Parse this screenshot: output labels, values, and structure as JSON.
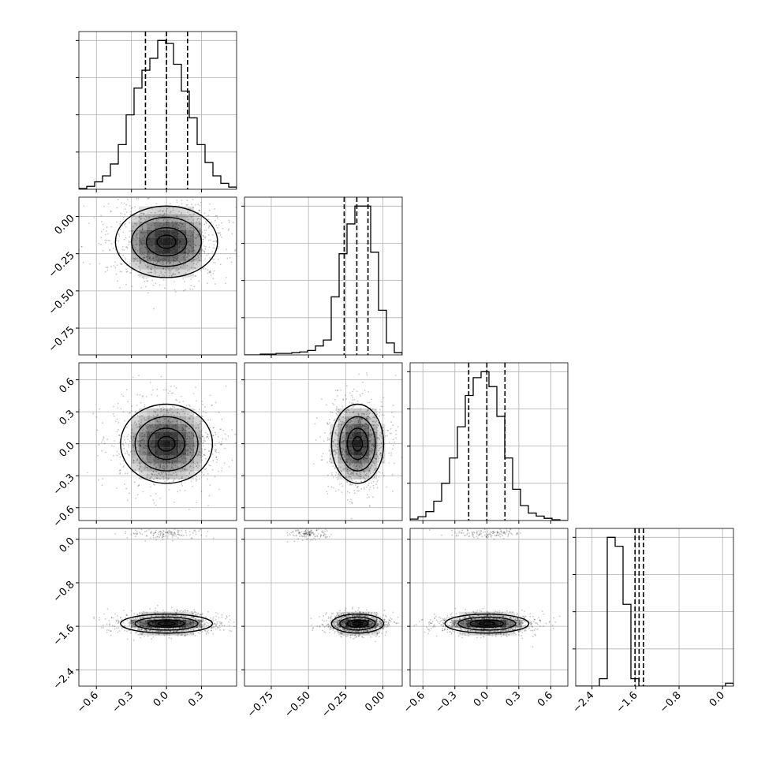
{
  "chart_data": {
    "type": "corner",
    "n_params": 4,
    "grid": true,
    "quantile_lines": "dashed",
    "params": [
      {
        "range": [
          -0.75,
          0.6
        ],
        "ticks": [
          -0.6,
          -0.3,
          0.0,
          0.3
        ],
        "tick_labels": [
          "−0.6",
          "−0.3",
          "0.0",
          "0.3"
        ],
        "quantiles": [
          -0.18,
          0.0,
          0.18
        ],
        "hist": [
          0.5,
          2,
          5,
          9,
          17,
          30,
          50,
          68,
          80,
          88,
          100,
          98,
          84,
          66,
          48,
          30,
          18,
          9,
          4,
          1.5
        ]
      },
      {
        "range": [
          -0.93,
          0.13
        ],
        "ticks": [
          -0.75,
          -0.5,
          -0.25,
          0.0
        ],
        "tick_labels": [
          "−0.75",
          "−0.50",
          "−0.25",
          "0.00"
        ],
        "quantiles": [
          -0.26,
          -0.175,
          -0.1
        ],
        "hist": [
          0,
          0,
          0.5,
          0.5,
          1,
          1,
          1.5,
          2,
          3,
          6,
          10,
          39,
          68,
          88,
          100,
          100,
          69,
          30,
          8,
          1.5
        ]
      },
      {
        "range": [
          -0.72,
          0.76
        ],
        "ticks": [
          -0.6,
          -0.3,
          0.0,
          0.3,
          0.6
        ],
        "tick_labels": [
          "−0.6",
          "−0.3",
          "0.0",
          "0.3",
          "0.6"
        ],
        "quantiles": [
          -0.17,
          0.0,
          0.17
        ],
        "hist": [
          1,
          2.5,
          6,
          13,
          25,
          42,
          63,
          84,
          96,
          100,
          90,
          70,
          42,
          21,
          10,
          5,
          3,
          1.5,
          0.5,
          0
        ]
      },
      {
        "range": [
          -2.7,
          0.2
        ],
        "ticks": [
          -2.4,
          -1.6,
          -0.8,
          0.0
        ],
        "tick_labels": [
          "−2.4",
          "−1.6",
          "−0.8",
          "0.0"
        ],
        "quantiles": [
          -1.61,
          -1.535,
          -1.455
        ],
        "hist": [
          0,
          0,
          0,
          5,
          100,
          94,
          55,
          5,
          0,
          0,
          0,
          0,
          0,
          0,
          0,
          0,
          0,
          0,
          0,
          2
        ]
      }
    ],
    "y_ticks": {
      "1": {
        "ticks": [
          -0.75,
          -0.5,
          -0.25,
          0.0
        ],
        "tick_labels": [
          "−0.75",
          "−0.50",
          "−0.25",
          "0.00"
        ]
      },
      "2": {
        "ticks": [
          -0.6,
          -0.3,
          0.0,
          0.3,
          0.6
        ],
        "tick_labels": [
          "−0.6",
          "−0.3",
          "0.0",
          "0.3",
          "0.6"
        ]
      },
      "3": {
        "ticks": [
          -2.4,
          -1.6,
          -0.8,
          0.0
        ],
        "tick_labels": [
          "−2.4",
          "−1.6",
          "−0.8",
          "0.0"
        ]
      }
    },
    "joint": {
      "peak_1_0": [
        0.0,
        -0.17,
        0.2,
        0.11
      ],
      "peak_2_0": [
        0.0,
        0.0,
        0.18,
        0.17
      ],
      "peak_2_1": [
        -0.17,
        0.0,
        0.08,
        0.17
      ],
      "peak_3_0": [
        0.0,
        -1.55,
        0.18,
        0.08
      ],
      "peak_3_1": [
        -0.17,
        -1.55,
        0.08,
        0.08
      ],
      "peak_3_2": [
        0.0,
        -1.55,
        0.18,
        0.08
      ],
      "outlier_cluster_param4": 0.1
    }
  }
}
